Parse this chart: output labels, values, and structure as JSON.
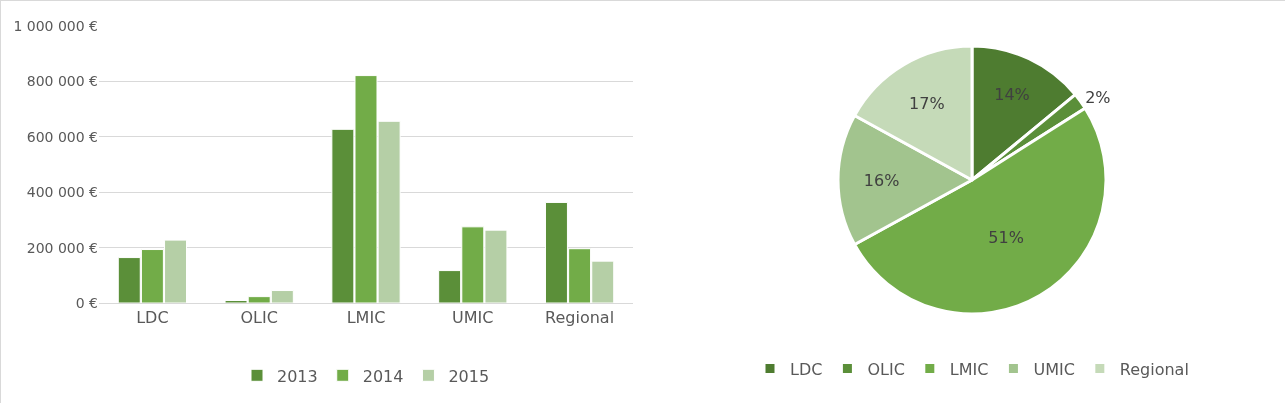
{
  "chart_data": [
    {
      "type": "bar",
      "categories": [
        "LDC",
        "OLIC",
        "LMIC",
        "UMIC",
        "Regional"
      ],
      "series": [
        {
          "name": "2013",
          "color": "#5b8f39",
          "values": [
            164000,
            9000,
            627000,
            117000,
            363000
          ]
        },
        {
          "name": "2014",
          "color": "#72ac48",
          "values": [
            193000,
            23000,
            821000,
            275000,
            196000
          ]
        },
        {
          "name": "2015",
          "color": "#b5cfa6",
          "values": [
            227000,
            45000,
            656000,
            263000,
            151000
          ]
        }
      ],
      "ylim": [
        0,
        1000000
      ],
      "yticks": [
        {
          "value": 0,
          "label": "0 €"
        },
        {
          "value": 200000,
          "label": "200 000 €"
        },
        {
          "value": 400000,
          "label": "400 000 €"
        },
        {
          "value": 600000,
          "label": "600 000 €"
        },
        {
          "value": 800000,
          "label": "800 000 €"
        },
        {
          "value": 1000000,
          "label": "1 000 000 €"
        }
      ],
      "grid": "y",
      "legend": "bottom"
    },
    {
      "type": "pie",
      "categories": [
        "LDC",
        "OLIC",
        "LMIC",
        "UMIC",
        "Regional"
      ],
      "values": [
        14,
        2,
        51,
        16,
        17
      ],
      "colors": [
        "#4e7c30",
        "#5b8f39",
        "#72ac48",
        "#a2c48e",
        "#c5dab8"
      ],
      "value_labels": [
        "14%",
        "2%",
        "51%",
        "16%",
        "17%"
      ],
      "legend": "bottom"
    }
  ]
}
